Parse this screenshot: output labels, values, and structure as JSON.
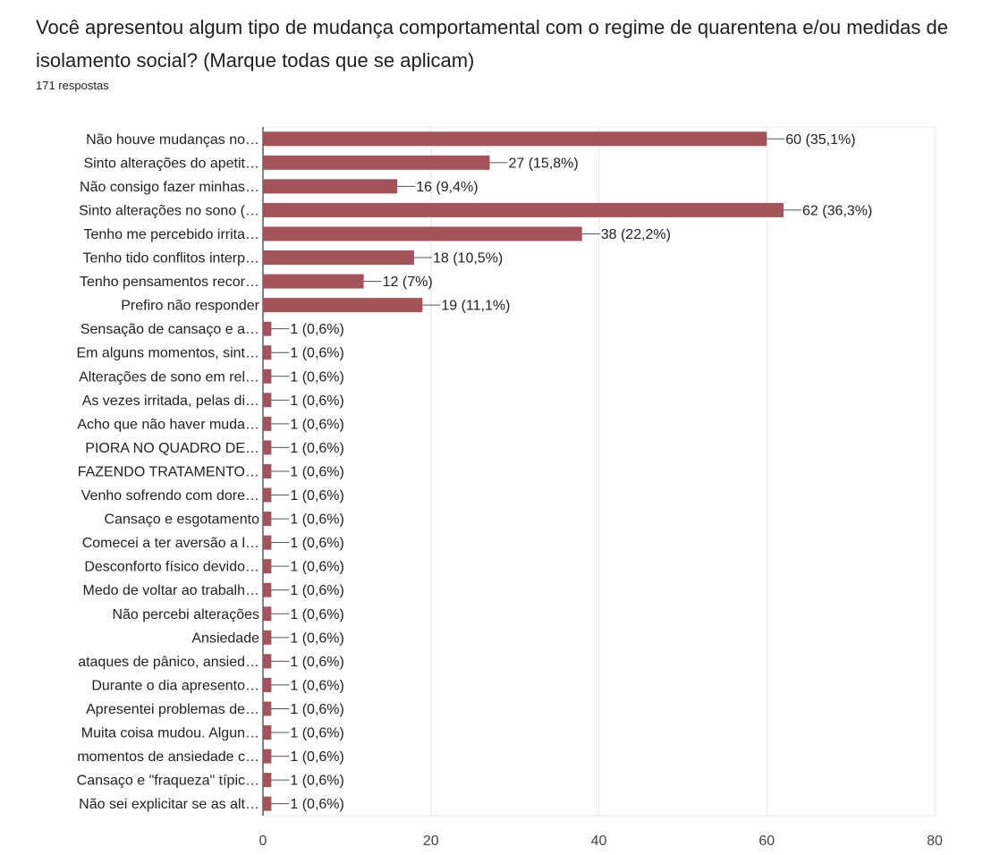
{
  "question": {
    "title": "Você apresentou algum tipo de mudança comportamental com o regime de quarentena e/ou medidas de isolamento social? (Marque todas que se aplicam)",
    "responses": "171 respostas"
  },
  "chart_data": {
    "type": "bar",
    "orientation": "horizontal",
    "bar_color": "#a5535a",
    "xlim": [
      0,
      80
    ],
    "xticks": [
      0,
      20,
      40,
      60,
      80
    ],
    "grid": true,
    "categories": [
      "Não houve mudanças no…",
      "Sinto alterações do apetit…",
      "Não consigo fazer minhas…",
      "Sinto alterações no sono (…",
      "Tenho me percebido irrita…",
      "Tenho tido conflitos interp…",
      "Tenho pensamentos recor…",
      "Prefiro não responder",
      "Sensação de cansaço e a…",
      "Em alguns momentos, sint…",
      "Alterações de sono em rel…",
      "As vezes irritada, pelas di…",
      "Acho que não haver muda…",
      "PIORA NO QUADRO DE…",
      "FAZENDO TRATAMENTO…",
      "Venho sofrendo com dore…",
      "Cansaço e esgotamento",
      "Comecei a ter aversão a l…",
      "Desconforto físico devido…",
      "Medo de voltar ao trabalh…",
      "Não percebi alterações",
      "Ansiedade",
      "ataques de pânico, ansied…",
      "Durante o dia apresento…",
      "Apresentei problemas de…",
      "Muita coisa mudou. Algun…",
      "momentos de ansiedade c…",
      "Cansaço e \"fraqueza\" típic…",
      "Não sei explicitar se as alt…"
    ],
    "values": [
      60,
      27,
      16,
      62,
      38,
      18,
      12,
      19,
      1,
      1,
      1,
      1,
      1,
      1,
      1,
      1,
      1,
      1,
      1,
      1,
      1,
      1,
      1,
      1,
      1,
      1,
      1,
      1,
      1
    ],
    "value_labels": [
      "60 (35,1%)",
      "27 (15,8%)",
      "16 (9,4%)",
      "62 (36,3%)",
      "38 (22,2%)",
      "18 (10,5%)",
      "12 (7%)",
      "19 (11,1%)",
      "1 (0,6%)",
      "1 (0,6%)",
      "1 (0,6%)",
      "1 (0,6%)",
      "1 (0,6%)",
      "1 (0,6%)",
      "1 (0,6%)",
      "1 (0,6%)",
      "1 (0,6%)",
      "1 (0,6%)",
      "1 (0,6%)",
      "1 (0,6%)",
      "1 (0,6%)",
      "1 (0,6%)",
      "1 (0,6%)",
      "1 (0,6%)",
      "1 (0,6%)",
      "1 (0,6%)",
      "1 (0,6%)",
      "1 (0,6%)",
      "1 (0,6%)"
    ]
  }
}
